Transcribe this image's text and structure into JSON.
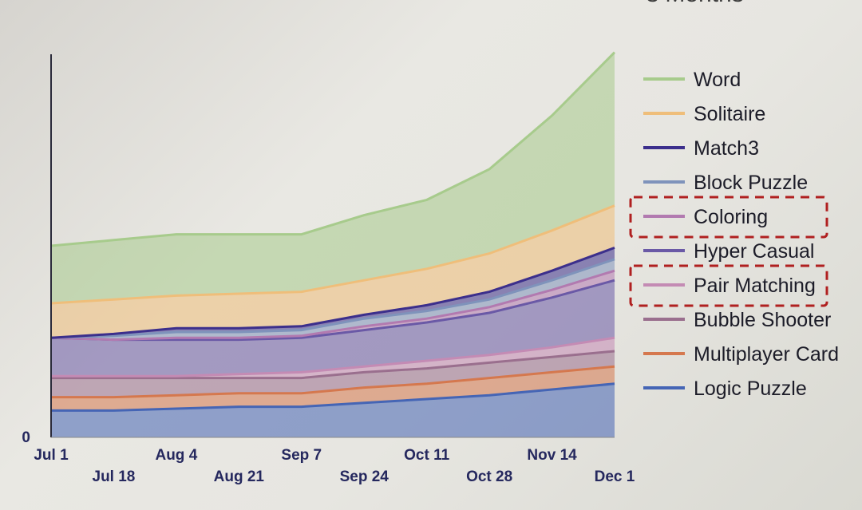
{
  "title_fragment": "s Months",
  "legend_highlight_color": "#b02020",
  "chart_data": {
    "type": "area",
    "stacked": true,
    "x": [
      "Jul 1",
      "Jul 18",
      "Aug 4",
      "Aug 21",
      "Sep 7",
      "Sep 24",
      "Oct 11",
      "Oct 28",
      "Nov 14",
      "Dec 1"
    ],
    "y_tick_labels": [
      "0"
    ],
    "ylim": [
      0,
      100
    ],
    "grid": false,
    "legend_position": "right",
    "legend_highlighted": [
      "Coloring",
      "Pair Matching"
    ],
    "series": [
      {
        "name": "Logic Puzzle",
        "color": "#4565b5",
        "values": [
          7,
          7,
          7.5,
          8,
          8,
          9,
          10,
          11,
          12.5,
          14
        ]
      },
      {
        "name": "Multiplayer Card",
        "color": "#d5784e",
        "values": [
          3.5,
          3.5,
          3.5,
          3.5,
          3.5,
          4,
          4,
          4.5,
          4.5,
          4.5
        ]
      },
      {
        "name": "Bubble Shooter",
        "color": "#9a6f8e",
        "values": [
          5,
          5,
          4.5,
          4,
          4,
          4,
          4,
          4,
          4,
          4
        ]
      },
      {
        "name": "Pair Matching",
        "color": "#c48bb4",
        "values": [
          0.5,
          0.5,
          0.5,
          1,
          1.5,
          1.5,
          2,
          2,
          2.5,
          3.5
        ]
      },
      {
        "name": "Hyper Casual",
        "color": "#6a59a6",
        "values": [
          10,
          9.5,
          9.5,
          9,
          9,
          9.5,
          10,
          11,
          13,
          15
        ]
      },
      {
        "name": "Coloring",
        "color": "#b27ab0",
        "values": [
          0,
          0,
          0.5,
          0.5,
          0.5,
          1,
          1,
          1.5,
          2,
          2.5
        ]
      },
      {
        "name": "Block Puzzle",
        "color": "#7f93bb",
        "values": [
          0,
          1,
          1.5,
          1.5,
          1.5,
          2,
          2,
          2,
          2.5,
          3
        ]
      },
      {
        "name": "Match3",
        "color": "#3c2f8c",
        "values": [
          0,
          0.5,
          1,
          1,
          1,
          1,
          1.5,
          2,
          2.5,
          3
        ]
      },
      {
        "name": "Solitaire",
        "color": "#efbe7a",
        "values": [
          9,
          9,
          8.5,
          9,
          9,
          9,
          9.5,
          10,
          10.5,
          11
        ]
      },
      {
        "name": "Word",
        "color": "#a7cb8c",
        "values": [
          15,
          15.5,
          16,
          15.5,
          15,
          17,
          18,
          22,
          30,
          40
        ]
      }
    ],
    "legend_order": [
      "Word",
      "Solitaire",
      "Match3",
      "Block Puzzle",
      "Coloring",
      "Hyper Casual",
      "Pair Matching",
      "Bubble Shooter",
      "Multiplayer Card",
      "Logic Puzzle"
    ]
  }
}
